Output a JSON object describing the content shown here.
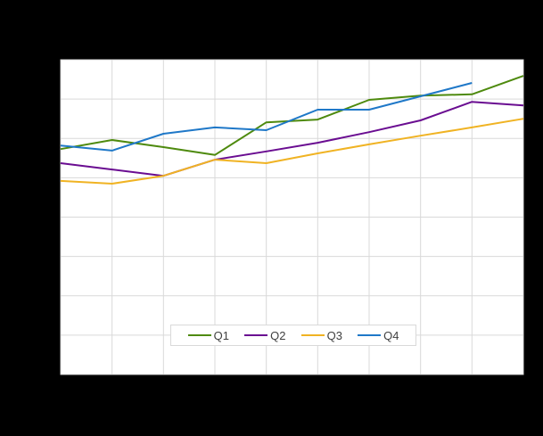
{
  "chart_data": {
    "type": "line",
    "title": "",
    "xlabel": "",
    "ylabel": "",
    "x": [
      1,
      2,
      3,
      4,
      5,
      6,
      7,
      8,
      9,
      10
    ],
    "ylim": [
      0,
      8
    ],
    "y_gridlines": 8,
    "grid": true,
    "legend_position": "bottom-inside",
    "series": [
      {
        "name": "Q1",
        "color": "#4e8a0e",
        "values": [
          5.73,
          5.96,
          5.78,
          5.58,
          6.41,
          6.48,
          6.98,
          7.09,
          7.12,
          7.59
        ]
      },
      {
        "name": "Q2",
        "color": "#6a0d91",
        "values": [
          5.37,
          5.21,
          5.05,
          5.46,
          5.67,
          5.89,
          6.16,
          6.46,
          6.93,
          6.84
        ]
      },
      {
        "name": "Q3",
        "color": "#f0b323",
        "values": [
          4.92,
          4.85,
          5.05,
          5.46,
          5.37,
          5.62,
          5.85,
          6.07,
          6.28,
          6.5
        ]
      },
      {
        "name": "Q4",
        "color": "#1f78c8",
        "values": [
          5.82,
          5.69,
          6.12,
          6.28,
          6.21,
          6.73,
          6.73,
          7.07,
          7.41,
          null
        ]
      }
    ]
  },
  "legend": {
    "items": [
      {
        "label": "Q1",
        "color": "#4e8a0e"
      },
      {
        "label": "Q2",
        "color": "#6a0d91"
      },
      {
        "label": "Q3",
        "color": "#f0b323"
      },
      {
        "label": "Q4",
        "color": "#1f78c8"
      }
    ]
  }
}
